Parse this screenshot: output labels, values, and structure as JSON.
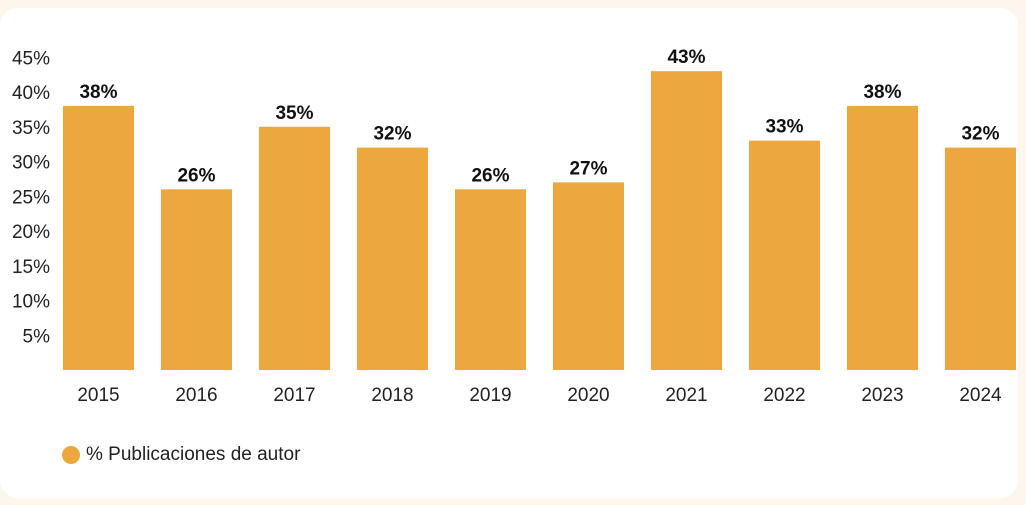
{
  "chart_data": {
    "type": "bar",
    "categories": [
      "2015",
      "2016",
      "2017",
      "2018",
      "2019",
      "2020",
      "2021",
      "2022",
      "2023",
      "2024"
    ],
    "series": [
      {
        "name": "% Publicaciones de autor",
        "values": [
          38,
          26,
          35,
          32,
          26,
          27,
          43,
          33,
          38,
          32
        ],
        "labels": [
          "38%",
          "26%",
          "35%",
          "32%",
          "26%",
          "27%",
          "43%",
          "33%",
          "38%",
          "32%"
        ]
      }
    ],
    "y_ticks": [
      "5%",
      "10%",
      "15%",
      "20%",
      "25%",
      "30%",
      "35%",
      "40%",
      "45%"
    ],
    "y_tick_values": [
      5,
      10,
      15,
      20,
      25,
      30,
      35,
      40,
      45
    ],
    "ylim": [
      0,
      45
    ],
    "grid": false,
    "legend_position": "bottom-left",
    "bar_color": "#eda73f",
    "title": "",
    "xlabel": "",
    "ylabel": ""
  },
  "legend": {
    "label": "% Publicaciones de autor"
  }
}
